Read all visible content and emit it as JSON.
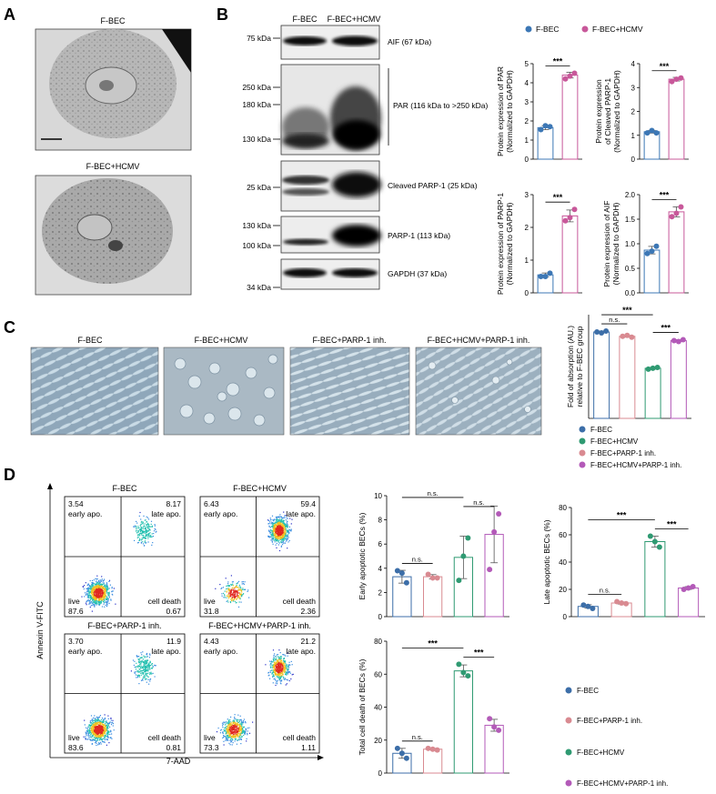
{
  "colors": {
    "fbec": "#3c6ea8",
    "fbec_hcmv": "#2f9a72",
    "fbec_parp": "#d98a91",
    "fbec_hcmv_parp": "#b35ab8",
    "panelB_hcmv": "#c8589a",
    "panelB_fbec_bar": "#3c77b5",
    "panelB_hcmv_bar": "#c8589a"
  },
  "panel_A": {
    "letter": "A",
    "labels": [
      "F-BEC",
      "F-BEC+HCMV"
    ]
  },
  "panel_B": {
    "letter": "B",
    "columns": [
      "F-BEC",
      "F-BEC+HCMV"
    ],
    "blots": [
      {
        "name": "AIF (67 kDa)",
        "markers": [
          "75 kDa"
        ]
      },
      {
        "name": "PAR (116 kDa to >250 kDa)",
        "markers": [
          "250 kDa",
          "180 kDa",
          "130 kDa"
        ]
      },
      {
        "name": "Cleaved PARP-1 (25 kDa)",
        "markers": [
          "25 kDa"
        ]
      },
      {
        "name": "PARP-1  (113 kDa)",
        "markers": [
          "130 kDa",
          "100 kDa"
        ]
      },
      {
        "name": "GAPDH (37 kDa)",
        "markers": [
          "34 kDa"
        ]
      }
    ],
    "legend": [
      "F-BEC",
      "F-BEC+HCMV"
    ]
  },
  "panel_C": {
    "letter": "C",
    "image_labels": [
      "F-BEC",
      "F-BEC+HCMV",
      "F-BEC+PARP-1 inh.",
      "F-BEC+HCMV+PARP-1 inh."
    ],
    "legend": [
      "F-BEC",
      "F-BEC+HCMV",
      "F-BEC+PARP-1 inh.",
      "F-BEC+HCMV+PARP-1 inh."
    ]
  },
  "panel_D": {
    "letter": "D",
    "flow_titles": [
      "F-BEC",
      "F-BEC+HCMV",
      "F-BEC+PARP-1 inh.",
      "F-BEC+HCMV+PARP-1 inh."
    ],
    "quadrant_labels": {
      "ul": "early apo.",
      "ur": "late apo.",
      "ll": "live",
      "lr": "cell death"
    },
    "quadrant_values": [
      {
        "ul": "3.54",
        "ur": "8.17",
        "ll": "87.6",
        "lr": "0.67"
      },
      {
        "ul": "6.43",
        "ur": "59.4",
        "ll": "31.8",
        "lr": "2.36"
      },
      {
        "ul": "3.70",
        "ur": "11.9",
        "ll": "83.6",
        "lr": "0.81"
      },
      {
        "ul": "4.43",
        "ur": "21.2",
        "ll": "73.3",
        "lr": "1.11"
      }
    ],
    "y_axis_label": "Annexin V-FITC",
    "x_axis_label": "7-AAD",
    "legend": [
      "F-BEC",
      "F-BEC+PARP-1 inh.",
      "F-BEC+HCMV",
      "F-BEC+HCMV+PARP-1 inh."
    ]
  },
  "chart_data": [
    {
      "id": "b_par",
      "type": "bar",
      "panel": "B",
      "categories": [
        "F-BEC",
        "F-BEC+HCMV"
      ],
      "values": [
        1.65,
        4.4
      ],
      "points": [
        [
          1.55,
          1.7,
          1.75
        ],
        [
          4.2,
          4.5,
          4.35
        ]
      ],
      "ylabel": "Protein expression of PAR\n(Normalized to GAPDH)",
      "ylim": [
        0,
        5
      ],
      "yticks": [
        0,
        1,
        2,
        3,
        4,
        5
      ],
      "significance": [
        {
          "between": [
            0,
            1
          ],
          "label": "***"
        }
      ]
    },
    {
      "id": "b_cparp",
      "type": "bar",
      "panel": "B",
      "categories": [
        "F-BEC",
        "F-BEC+HCMV"
      ],
      "values": [
        1.15,
        3.35
      ],
      "points": [
        [
          1.1,
          1.1,
          1.2
        ],
        [
          3.25,
          3.4,
          3.35
        ]
      ],
      "ylabel": "Protein expression\nof Cleaved PARP-1\n(Normalized to GAPDH)",
      "ylim": [
        0,
        4
      ],
      "yticks": [
        0,
        1,
        2,
        3,
        4
      ],
      "significance": [
        {
          "between": [
            0,
            1
          ],
          "label": "***"
        }
      ]
    },
    {
      "id": "b_parp1",
      "type": "bar",
      "panel": "B",
      "categories": [
        "F-BEC",
        "F-BEC+HCMV"
      ],
      "values": [
        0.55,
        2.35
      ],
      "points": [
        [
          0.5,
          0.6,
          0.5
        ],
        [
          2.2,
          2.55,
          2.3
        ]
      ],
      "ylabel": "Protein expression of PARP-1\n(Normalized to GAPDH)",
      "ylim": [
        0,
        3
      ],
      "yticks": [
        0,
        1,
        2,
        3
      ],
      "significance": [
        {
          "between": [
            0,
            1
          ],
          "label": "***"
        }
      ]
    },
    {
      "id": "b_aif",
      "type": "bar",
      "panel": "B",
      "categories": [
        "F-BEC",
        "F-BEC+HCMV"
      ],
      "values": [
        0.87,
        1.65
      ],
      "points": [
        [
          0.8,
          0.95,
          0.85
        ],
        [
          1.55,
          1.75,
          1.62
        ]
      ],
      "ylabel": "Protein expression of AIF\n(Normalized to GAPDH)",
      "ylim": [
        0,
        2.0
      ],
      "yticks": [
        0,
        0.5,
        1.0,
        1.5,
        2.0
      ],
      "ytick_labels": [
        "0.0",
        "0.5",
        "1.0",
        "1.5",
        "2.0"
      ],
      "significance": [
        {
          "between": [
            0,
            1
          ],
          "label": "***"
        }
      ]
    },
    {
      "id": "c_absorption",
      "type": "bar",
      "panel": "C",
      "categories": [
        "F-BEC",
        "F-BEC+PARP-1 inh.",
        "F-BEC+HCMV",
        "F-BEC+HCMV+PARP-1 inh."
      ],
      "values": [
        1.0,
        0.95,
        0.58,
        0.9
      ],
      "points": [
        [
          1.0,
          1.01,
          0.99
        ],
        [
          0.95,
          0.94,
          0.96
        ],
        [
          0.57,
          0.59,
          0.58
        ],
        [
          0.9,
          0.91,
          0.89
        ]
      ],
      "ylabel": "Fold of absorption (AU.)\nrelative to F-BEC group",
      "ylim": [
        0,
        1.2
      ],
      "significance": [
        {
          "between": [
            0,
            1
          ],
          "label": "n.s."
        },
        {
          "between": [
            0,
            2
          ],
          "label": "***"
        },
        {
          "between": [
            2,
            3
          ],
          "label": "***"
        }
      ]
    },
    {
      "id": "d_early",
      "type": "bar",
      "panel": "D",
      "categories": [
        "F-BEC",
        "F-BEC+PARP-1 inh.",
        "F-BEC+HCMV",
        "F-BEC+HCMV+PARP-1 inh."
      ],
      "values": [
        3.3,
        3.3,
        4.9,
        6.8
      ],
      "points": [
        [
          3.8,
          2.8,
          3.6
        ],
        [
          3.5,
          3.2,
          3.2
        ],
        [
          3.0,
          6.5,
          5.0
        ],
        [
          3.9,
          8.5,
          7.0
        ]
      ],
      "ylabel": "Early apoptotic BECs (%)",
      "ylim": [
        0,
        10
      ],
      "yticks": [
        0,
        2,
        4,
        6,
        8,
        10
      ],
      "significance": [
        {
          "between": [
            0,
            1
          ],
          "label": "n.s."
        },
        {
          "between": [
            0,
            2
          ],
          "label": "n.s."
        },
        {
          "between": [
            2,
            3
          ],
          "label": "n.s."
        }
      ]
    },
    {
      "id": "d_late",
      "type": "bar",
      "panel": "D",
      "categories": [
        "F-BEC",
        "F-BEC+PARP-1 inh.",
        "F-BEC+HCMV",
        "F-BEC+HCMV+PARP-1 inh."
      ],
      "values": [
        7.5,
        10,
        55,
        21
      ],
      "points": [
        [
          8.5,
          6,
          7.5
        ],
        [
          11,
          9.5,
          10
        ],
        [
          59,
          51,
          55
        ],
        [
          20,
          22,
          21
        ]
      ],
      "ylabel": "Late apoptotic BECs (%)",
      "ylim": [
        0,
        80
      ],
      "yticks": [
        0,
        20,
        40,
        60,
        80
      ],
      "significance": [
        {
          "between": [
            0,
            1
          ],
          "label": "n.s."
        },
        {
          "between": [
            0,
            2
          ],
          "label": "***"
        },
        {
          "between": [
            2,
            3
          ],
          "label": "***"
        }
      ]
    },
    {
      "id": "d_total",
      "type": "bar",
      "panel": "D",
      "categories": [
        "F-BEC",
        "F-BEC+PARP-1 inh.",
        "F-BEC+HCMV",
        "F-BEC+HCMV+PARP-1 inh."
      ],
      "values": [
        12,
        14.5,
        62,
        29
      ],
      "points": [
        [
          15,
          9,
          12
        ],
        [
          15,
          14,
          14.5
        ],
        [
          66,
          59,
          61
        ],
        [
          33,
          26,
          28
        ]
      ],
      "ylabel": "Total cell death of BECs (%)",
      "ylim": [
        0,
        80
      ],
      "yticks": [
        0,
        20,
        40,
        60,
        80
      ],
      "significance": [
        {
          "between": [
            0,
            1
          ],
          "label": "n.s."
        },
        {
          "between": [
            0,
            2
          ],
          "label": "***"
        },
        {
          "between": [
            2,
            3
          ],
          "label": "***"
        }
      ]
    }
  ]
}
